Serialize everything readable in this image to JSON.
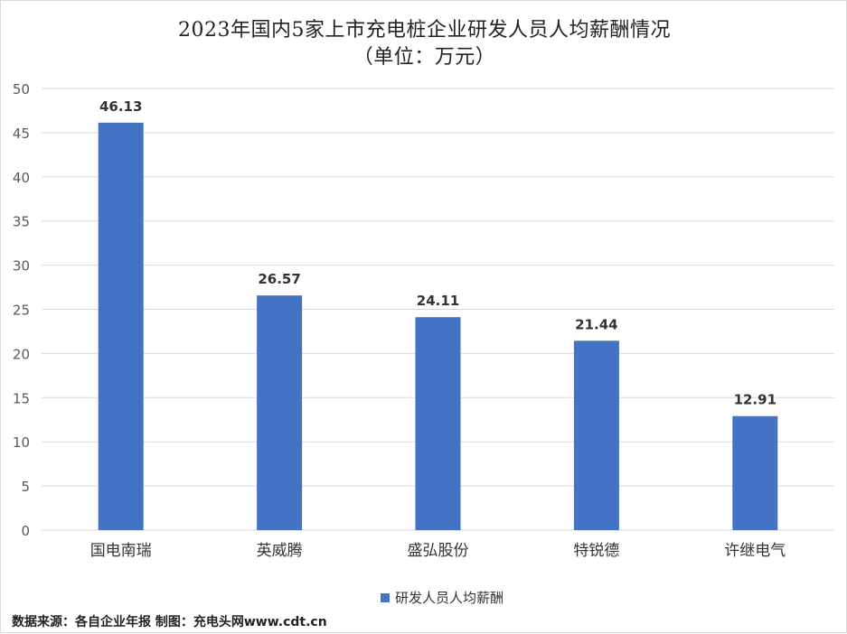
{
  "chart_data": {
    "type": "bar",
    "title": "2023年国内5家上市充电桩企业研发人员人均薪酬情况",
    "subtitle": "（单位：万元）",
    "categories": [
      "国电南瑞",
      "英威腾",
      "盛弘股份",
      "特锐德",
      "许继电气"
    ],
    "series": [
      {
        "name": "研发人员人均薪酬",
        "values": [
          46.13,
          26.57,
          24.11,
          21.44,
          12.91
        ],
        "color": "#4472C4"
      }
    ],
    "data_labels": [
      "46.13",
      "26.57",
      "24.11",
      "21.44",
      "12.91"
    ],
    "ylim": [
      0,
      50
    ],
    "yticks": [
      "0",
      "5",
      "10",
      "15",
      "20",
      "25",
      "30",
      "35",
      "40",
      "45",
      "50"
    ],
    "ytick_values": [
      0,
      5,
      10,
      15,
      20,
      25,
      30,
      35,
      40,
      45,
      50
    ],
    "grid": true,
    "legend_position": "bottom"
  },
  "footer": {
    "source": "数据来源：各自企业年报 制图：充电头网www.cdt.cn"
  },
  "colors": {
    "bar": "#4472C4",
    "gridline": "#d9d9d9",
    "axis_text": "#595959"
  }
}
